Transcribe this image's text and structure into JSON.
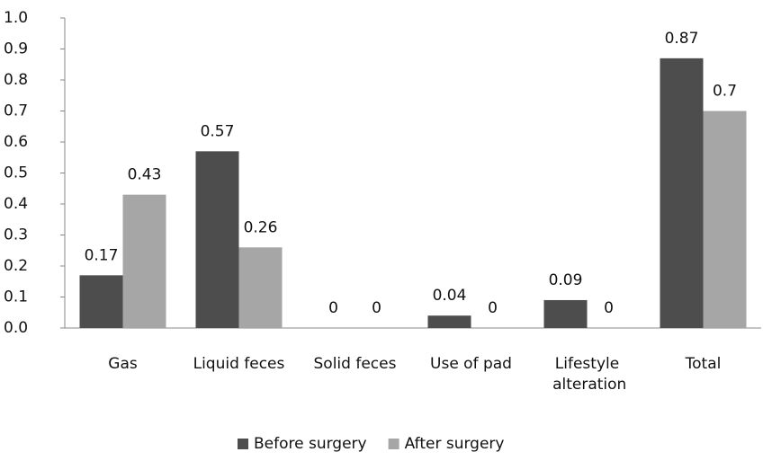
{
  "chart_data": {
    "type": "bar",
    "categories": [
      "Gas",
      "Liquid feces",
      "Solid feces",
      "Use of pad",
      "Lifestyle alteration",
      "Total"
    ],
    "series": [
      {
        "name": "Before surgery",
        "color": "#4d4d4d",
        "values": [
          0.17,
          0.57,
          0,
          0.04,
          0.09,
          0.87
        ]
      },
      {
        "name": "After surgery",
        "color": "#a6a6a6",
        "values": [
          0.43,
          0.26,
          0,
          0,
          0,
          0.7
        ]
      }
    ],
    "ylim": [
      0,
      1
    ],
    "yticks": [
      {
        "value": 0,
        "label": "0.0"
      },
      0.1,
      0.2,
      0.3,
      0.4,
      0.5,
      0.6,
      0.7,
      0.8,
      0.9,
      {
        "value": 1,
        "label": "1.0"
      }
    ],
    "legend": "bottom"
  }
}
